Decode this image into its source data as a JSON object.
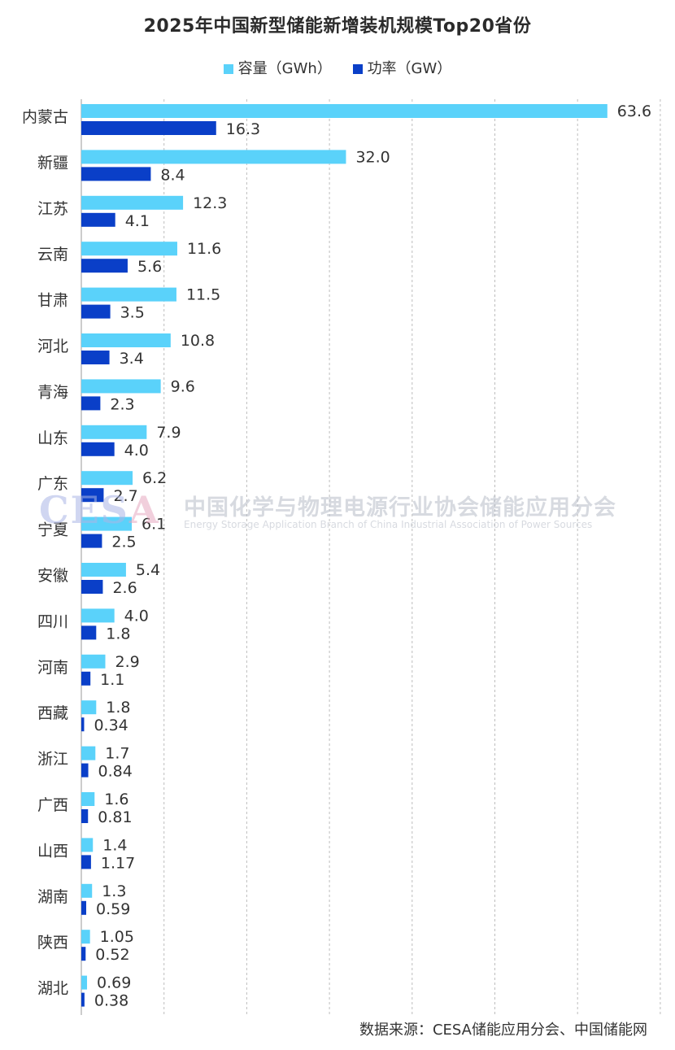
{
  "title": "2025年中国新型储能新增装机规模Top20省份",
  "legend": {
    "capacity_label": "容量（GWh）",
    "power_label": "功率（GW）"
  },
  "colors": {
    "capacity": "#5ad2fa",
    "power": "#0a3fc8",
    "grid": "#bdbdbd",
    "axis": "#999999"
  },
  "watermark": {
    "logo_part1": "CES",
    "logo_part2": "A",
    "cn": "中国化学与物理电源行业协会储能应用分会",
    "en": "Energy Storage Application Branch of China Industrial Association of Power Sources"
  },
  "source": "数据来源：CESA储能应用分会、中国储能网",
  "chart_data": {
    "type": "bar",
    "orientation": "horizontal",
    "categories": [
      "内蒙古",
      "新疆",
      "江苏",
      "云南",
      "甘肃",
      "河北",
      "青海",
      "山东",
      "广东",
      "宁夏",
      "安徽",
      "四川",
      "河南",
      "西藏",
      "浙江",
      "广西",
      "山西",
      "湖南",
      "陕西",
      "湖北"
    ],
    "series": [
      {
        "name": "容量（GWh）",
        "values": [
          63.6,
          32.0,
          12.3,
          11.6,
          11.5,
          10.8,
          9.6,
          7.9,
          6.2,
          6.1,
          5.4,
          4.0,
          2.9,
          1.8,
          1.7,
          1.6,
          1.4,
          1.3,
          1.05,
          0.69
        ],
        "labels": [
          "63.6",
          "32.0",
          "12.3",
          "11.6",
          "11.5",
          "10.8",
          "9.6",
          "7.9",
          "6.2",
          "6.1",
          "5.4",
          "4.0",
          "2.9",
          "1.8",
          "1.7",
          "1.6",
          "1.4",
          "1.3",
          "1.05",
          "0.69"
        ]
      },
      {
        "name": "功率（GW）",
        "values": [
          16.3,
          8.4,
          4.1,
          5.6,
          3.5,
          3.4,
          2.3,
          4.0,
          2.7,
          2.5,
          2.6,
          1.8,
          1.1,
          0.34,
          0.84,
          0.81,
          1.17,
          0.59,
          0.52,
          0.38
        ],
        "labels": [
          "16.3",
          "8.4",
          "4.1",
          "5.6",
          "3.5",
          "3.4",
          "2.3",
          "4.0",
          "2.7",
          "2.5",
          "2.6",
          "1.8",
          "1.1",
          "0.34",
          "0.84",
          "0.81",
          "1.17",
          "0.59",
          "0.52",
          "0.38"
        ]
      }
    ],
    "xlim": [
      0,
      70
    ],
    "grid": true,
    "legend_position": "top-center"
  }
}
